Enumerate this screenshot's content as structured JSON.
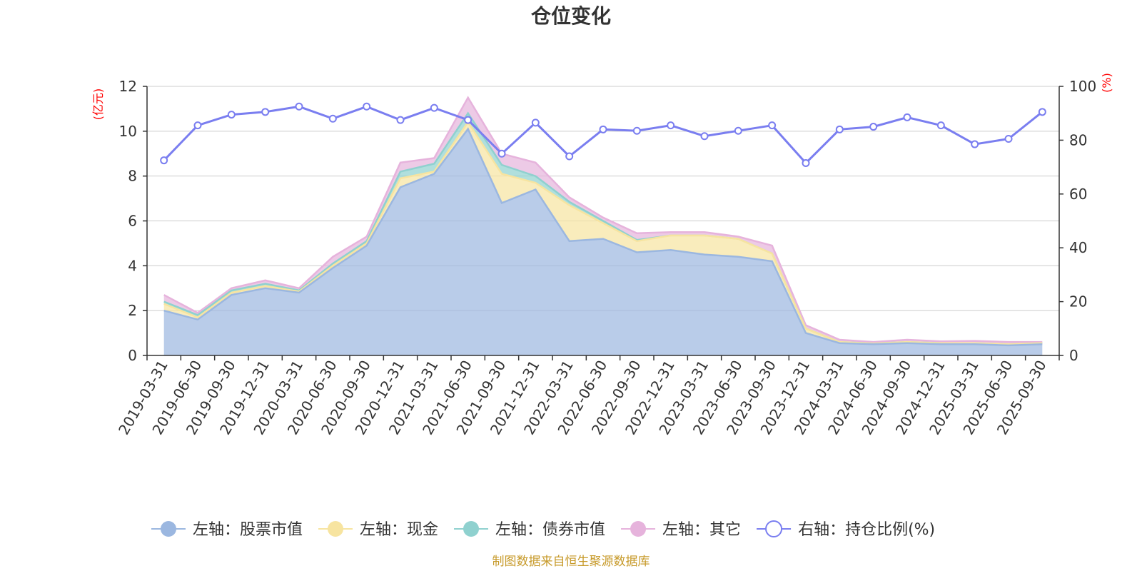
{
  "chart_data": {
    "type": "area",
    "title": "仓位变化",
    "left_axis_unit": "(亿元)",
    "right_axis_unit": "(%)",
    "ylim_left": [
      0,
      12
    ],
    "yticks_left": [
      0,
      2,
      4,
      6,
      8,
      10,
      12
    ],
    "ylim_right": [
      0,
      100
    ],
    "yticks_right": [
      0,
      20,
      40,
      60,
      80,
      100
    ],
    "categories": [
      "2019-03-31",
      "2019-06-30",
      "2019-09-30",
      "2019-12-31",
      "2020-03-31",
      "2020-06-30",
      "2020-09-30",
      "2020-12-31",
      "2021-03-31",
      "2021-06-30",
      "2021-09-30",
      "2021-12-31",
      "2022-03-31",
      "2022-06-30",
      "2022-09-30",
      "2022-12-31",
      "2023-03-31",
      "2023-06-30",
      "2023-09-30",
      "2023-12-31",
      "2024-03-31",
      "2024-06-30",
      "2024-09-30",
      "2024-12-31",
      "2025-03-31",
      "2025-06-30",
      "2025-09-30"
    ],
    "stacked_series": [
      {
        "name": "左轴：股票市值",
        "color": "#9bb7e0",
        "values": [
          2.0,
          1.6,
          2.7,
          3.0,
          2.8,
          3.9,
          4.9,
          7.5,
          8.1,
          10.1,
          6.8,
          7.4,
          5.1,
          5.2,
          4.6,
          4.7,
          4.5,
          4.4,
          4.2,
          1.0,
          0.55,
          0.5,
          0.55,
          0.5,
          0.5,
          0.45,
          0.5
        ]
      },
      {
        "name": "左轴：现金",
        "color": "#f7e4a0",
        "values": [
          0.3,
          0.1,
          0.1,
          0.1,
          0.05,
          0.1,
          0.1,
          0.4,
          0.1,
          0.3,
          1.3,
          0.3,
          1.6,
          0.7,
          0.5,
          0.65,
          0.85,
          0.8,
          0.35,
          0.2,
          0.05,
          0.03,
          0.05,
          0.05,
          0.05,
          0.05,
          0.05
        ]
      },
      {
        "name": "左轴：债券市值",
        "color": "#8fd1cf",
        "values": [
          0.1,
          0.1,
          0.1,
          0.1,
          0.05,
          0.1,
          0.1,
          0.3,
          0.35,
          0.4,
          0.4,
          0.3,
          0.15,
          0.1,
          0.05,
          0.0,
          0.0,
          0.0,
          0.0,
          0.0,
          0.0,
          0.0,
          0.0,
          0.0,
          0.0,
          0.0,
          0.0
        ]
      },
      {
        "name": "左轴：其它",
        "color": "#e6b3dc",
        "values": [
          0.3,
          0.1,
          0.1,
          0.15,
          0.1,
          0.3,
          0.2,
          0.4,
          0.25,
          0.7,
          0.5,
          0.6,
          0.2,
          0.15,
          0.3,
          0.15,
          0.15,
          0.1,
          0.35,
          0.15,
          0.1,
          0.07,
          0.1,
          0.08,
          0.1,
          0.1,
          0.05
        ]
      }
    ],
    "line_series": {
      "name": "右轴：持仓比例(%)",
      "color": "#7a7ef0",
      "values": [
        72.5,
        85.5,
        89.5,
        90.5,
        92.5,
        88.0,
        92.5,
        87.5,
        92.0,
        87.5,
        75.0,
        86.5,
        74.0,
        84.0,
        83.5,
        85.5,
        81.5,
        83.5,
        85.5,
        71.5,
        84.0,
        85.0,
        88.5,
        85.5,
        78.5,
        80.5,
        90.5
      ]
    },
    "legend_position": "bottom-center"
  },
  "source_note": "制图数据来自恒生聚源数据库"
}
